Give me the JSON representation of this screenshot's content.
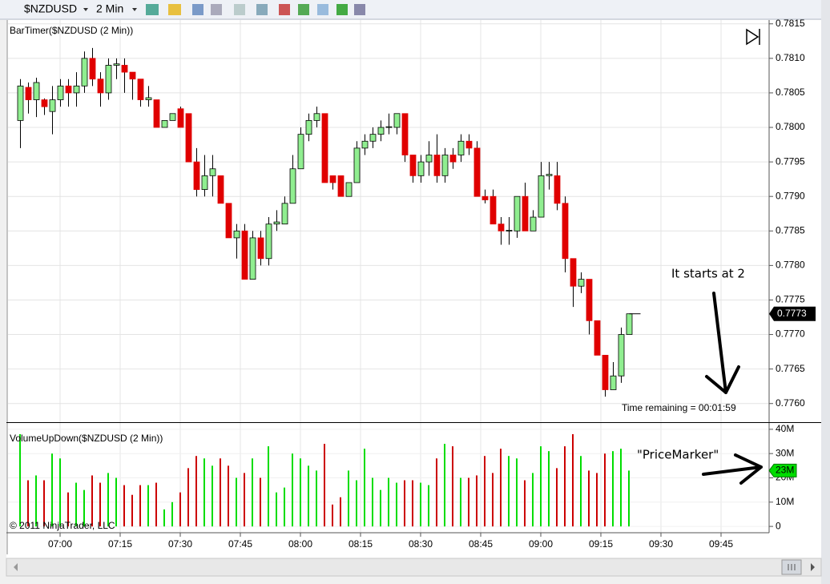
{
  "toolbar": {
    "instrument": "$NZDUSD",
    "interval": "2 Min"
  },
  "copyright": "© 2011 NinjaTrader, LLC",
  "chart_data": [
    {
      "type": "candlestick",
      "title": "BarTimer($NZDUSD (2 Min))",
      "bar_timer": "Time remaining = 00:01:59",
      "annotation": "It starts at 2",
      "up_color": "#90ee90",
      "down_color": "#e00000",
      "grid": true,
      "x": [
        "06:50",
        "06:52",
        "06:54",
        "06:56",
        "06:58",
        "07:00",
        "07:02",
        "07:04",
        "07:06",
        "07:08",
        "07:10",
        "07:12",
        "07:14",
        "07:16",
        "07:18",
        "07:20",
        "07:22",
        "07:24",
        "07:26",
        "07:28",
        "07:30",
        "07:32",
        "07:34",
        "07:36",
        "07:38",
        "07:40",
        "07:42",
        "07:44",
        "07:46",
        "07:48",
        "07:50",
        "07:52",
        "07:54",
        "07:56",
        "07:58",
        "08:00",
        "08:02",
        "08:04",
        "08:06",
        "08:08",
        "08:10",
        "08:12",
        "08:14",
        "08:16",
        "08:18",
        "08:20",
        "08:22",
        "08:24",
        "08:26",
        "08:28",
        "08:30",
        "08:32",
        "08:34",
        "08:36",
        "08:38",
        "08:40",
        "08:42",
        "08:44",
        "08:46",
        "08:48",
        "08:50",
        "08:52",
        "08:54",
        "08:56",
        "08:58",
        "09:00",
        "09:02",
        "09:04",
        "09:06",
        "09:08",
        "09:10",
        "09:12",
        "09:14",
        "09:16",
        "09:18",
        "09:20",
        "09:22"
      ],
      "open": [
        0.7801,
        0.78058,
        0.7804,
        0.7804,
        0.78023,
        0.7804,
        0.7806,
        0.7805,
        0.7806,
        0.781,
        0.7807,
        0.7805,
        0.7809,
        0.7809,
        0.7808,
        0.7807,
        0.7804,
        0.7804,
        0.78,
        0.7801,
        0.78027,
        0.7802,
        0.7795,
        0.7791,
        0.7793,
        0.7793,
        0.7789,
        0.7784,
        0.7785,
        0.7778,
        0.7784,
        0.7781,
        0.7786,
        0.7786,
        0.7789,
        0.7794,
        0.7799,
        0.7801,
        0.7802,
        0.7793,
        0.7793,
        0.779,
        0.7792,
        0.7797,
        0.7798,
        0.7799,
        0.78,
        0.78,
        0.7802,
        0.7796,
        0.7793,
        0.7795,
        0.7796,
        0.7793,
        0.7796,
        0.7796,
        0.7798,
        0.7797,
        0.779,
        0.779,
        0.7786,
        0.7785,
        0.7785,
        0.779,
        0.7785,
        0.7787,
        0.7793,
        0.7793,
        0.7789,
        0.7781,
        0.7777,
        0.7778,
        0.7772,
        0.7767,
        0.7762,
        0.7764,
        0.777
      ],
      "high": [
        0.7807,
        0.78065,
        0.78072,
        0.78042,
        0.7806,
        0.7807,
        0.7807,
        0.7808,
        0.7811,
        0.78115,
        0.7808,
        0.781,
        0.781,
        0.781,
        0.7808,
        0.7807,
        0.7806,
        0.7804,
        0.7801,
        0.7802,
        0.7803,
        0.7802,
        0.7797,
        0.7796,
        0.7796,
        0.7793,
        0.7789,
        0.7786,
        0.7786,
        0.7785,
        0.7785,
        0.7787,
        0.7788,
        0.779,
        0.7796,
        0.78,
        0.7802,
        0.7803,
        0.7802,
        0.7793,
        0.7793,
        0.7792,
        0.7798,
        0.7799,
        0.78,
        0.7801,
        0.7802,
        0.7802,
        0.7802,
        0.7796,
        0.7796,
        0.7798,
        0.7799,
        0.7797,
        0.7797,
        0.7799,
        0.7799,
        0.7798,
        0.7791,
        0.7791,
        0.7787,
        0.7787,
        0.779,
        0.7792,
        0.7788,
        0.7795,
        0.7795,
        0.7795,
        0.779,
        0.7781,
        0.7779,
        0.7778,
        0.7772,
        0.7767,
        0.7766,
        0.7771,
        0.7773
      ],
      "low": [
        0.7797,
        0.7802,
        0.78015,
        0.78018,
        0.7799,
        0.7803,
        0.7803,
        0.7803,
        0.7805,
        0.7806,
        0.7803,
        0.7804,
        0.7807,
        0.7805,
        0.7804,
        0.7803,
        0.7803,
        0.78,
        0.78,
        0.7801,
        0.78,
        0.7795,
        0.779,
        0.779,
        0.779,
        0.7789,
        0.7784,
        0.7781,
        0.7778,
        0.7778,
        0.778,
        0.778,
        0.7785,
        0.7786,
        0.7789,
        0.7794,
        0.7798,
        0.78,
        0.7792,
        0.7791,
        0.779,
        0.779,
        0.7792,
        0.7796,
        0.7797,
        0.7798,
        0.7799,
        0.7799,
        0.7795,
        0.7792,
        0.7792,
        0.7793,
        0.7792,
        0.7792,
        0.7794,
        0.7795,
        0.7796,
        0.779,
        0.7789,
        0.7786,
        0.7783,
        0.7783,
        0.7784,
        0.7785,
        0.7785,
        0.7787,
        0.7791,
        0.7788,
        0.7779,
        0.7774,
        0.7776,
        0.777,
        0.7767,
        0.7761,
        0.7762,
        0.7763,
        0.777
      ],
      "close": [
        0.7806,
        0.7804,
        0.78065,
        0.7803,
        0.7804,
        0.7806,
        0.7805,
        0.7806,
        0.781,
        0.7807,
        0.7805,
        0.7809,
        0.78092,
        0.7808,
        0.7807,
        0.7804,
        0.78043,
        0.78,
        0.7801,
        0.7802,
        0.78,
        0.7795,
        0.7791,
        0.7793,
        0.7794,
        0.7789,
        0.7784,
        0.7785,
        0.7778,
        0.7784,
        0.7781,
        0.7786,
        0.77863,
        0.7789,
        0.7794,
        0.7799,
        0.7801,
        0.7802,
        0.7792,
        0.7792,
        0.779,
        0.7792,
        0.7797,
        0.7798,
        0.7799,
        0.78,
        0.78001,
        0.7802,
        0.7796,
        0.7793,
        0.7795,
        0.7796,
        0.7793,
        0.7796,
        0.7795,
        0.7798,
        0.7797,
        0.779,
        0.77895,
        0.7786,
        0.7785,
        0.77851,
        0.779,
        0.7785,
        0.7787,
        0.7793,
        0.77932,
        0.7789,
        0.7781,
        0.7777,
        0.7778,
        0.7772,
        0.7767,
        0.7762,
        0.7764,
        0.777,
        0.7773
      ],
      "last_price": 0.7773,
      "xlim": [
        "06:47",
        "09:57"
      ],
      "xticks": [
        "07:00",
        "07:15",
        "07:30",
        "07:45",
        "08:00",
        "08:15",
        "08:30",
        "08:45",
        "09:00",
        "09:15",
        "09:30",
        "09:45"
      ],
      "ylim": [
        0.77573,
        0.78159
      ],
      "yticks": [
        0.7815,
        {
          "value": 0.781,
          "label": "0.7810"
        },
        0.7805,
        {
          "value": 0.78,
          "label": "0.7800"
        },
        0.7795,
        {
          "value": 0.779,
          "label": "0.7790"
        },
        0.7785,
        {
          "value": 0.778,
          "label": "0.7780"
        },
        0.7775,
        {
          "value": 0.777,
          "label": "0.7770"
        },
        0.7765,
        {
          "value": 0.776,
          "label": "0.7760"
        }
      ]
    },
    {
      "type": "bar",
      "title": "VolumeUpDown($NZDUSD (2 Min))",
      "annotation": "\"PriceMarker\"",
      "up_color": "#00dd00",
      "down_color": "#cc0000",
      "values": [
        38,
        19,
        21,
        19,
        30,
        28,
        14,
        18,
        15,
        21,
        18,
        22,
        20,
        17,
        13,
        17,
        17,
        18,
        7,
        10,
        14,
        24,
        29,
        28,
        25,
        28,
        25,
        20,
        22,
        28,
        20,
        33,
        14,
        16,
        30,
        28,
        25,
        23,
        34,
        9,
        12,
        23,
        19,
        32,
        20,
        15,
        20,
        18,
        19,
        19,
        18,
        17,
        28,
        34,
        33,
        20,
        20,
        21,
        29,
        22,
        32,
        29,
        28,
        19,
        22,
        33,
        31,
        24,
        33,
        38,
        29,
        23,
        22,
        30,
        31,
        32,
        23
      ],
      "last_value": {
        "value": 23,
        "label": "23M"
      },
      "ylim": [
        -2.6,
        42.6
      ],
      "yticks": [
        0,
        {
          "value": 10,
          "label": "10M"
        },
        {
          "value": 20,
          "label": "20M"
        },
        {
          "value": 30,
          "label": "30M"
        },
        {
          "value": 40,
          "label": "40M"
        }
      ]
    }
  ]
}
